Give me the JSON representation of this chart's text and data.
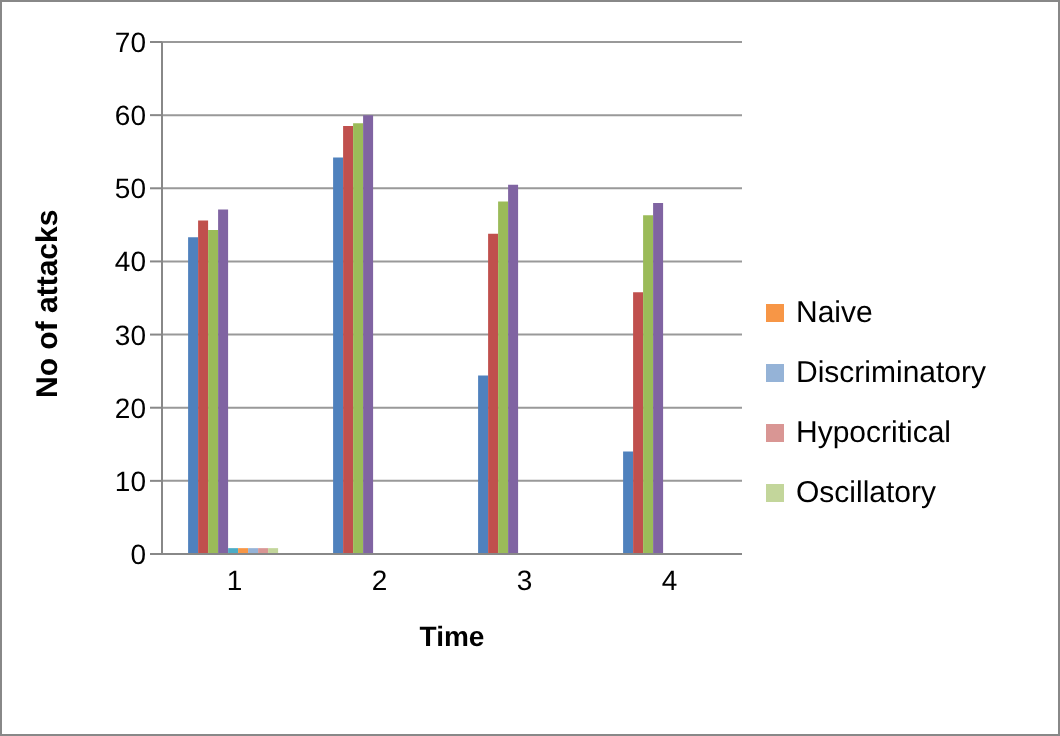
{
  "chart_data": {
    "type": "bar",
    "xlabel": "Time",
    "ylabel": "No of attacks",
    "categories": [
      "1",
      "2",
      "3",
      "4"
    ],
    "series": [
      {
        "color": "#4f81bd",
        "values": [
          43.3,
          54.2,
          24.4,
          14
        ]
      },
      {
        "color": "#c0504d",
        "values": [
          45.6,
          58.5,
          43.8,
          35.8
        ]
      },
      {
        "color": "#9bbb59",
        "values": [
          44.3,
          58.9,
          48.2,
          46.3
        ]
      },
      {
        "color": "#8064a2",
        "values": [
          47.1,
          60,
          50.5,
          48
        ]
      },
      {
        "color": "#4bacc6",
        "values": [
          0.8,
          null,
          null,
          null
        ]
      },
      {
        "name": "Naive",
        "color": "#f79646",
        "values": [
          0.8,
          null,
          null,
          null
        ]
      },
      {
        "name": "Discriminatory",
        "color": "#95b3d7",
        "values": [
          0.8,
          null,
          null,
          null
        ]
      },
      {
        "name": "Hypocritical",
        "color": "#d99694",
        "values": [
          0.8,
          null,
          null,
          null
        ]
      },
      {
        "name": "Oscillatory",
        "color": "#c3d69b",
        "values": [
          0.8,
          null,
          null,
          null
        ]
      }
    ],
    "ylim": [
      0,
      70
    ],
    "yticks": [
      0,
      10,
      20,
      30,
      40,
      50,
      60,
      70
    ],
    "grid": "y",
    "legend": "right"
  }
}
